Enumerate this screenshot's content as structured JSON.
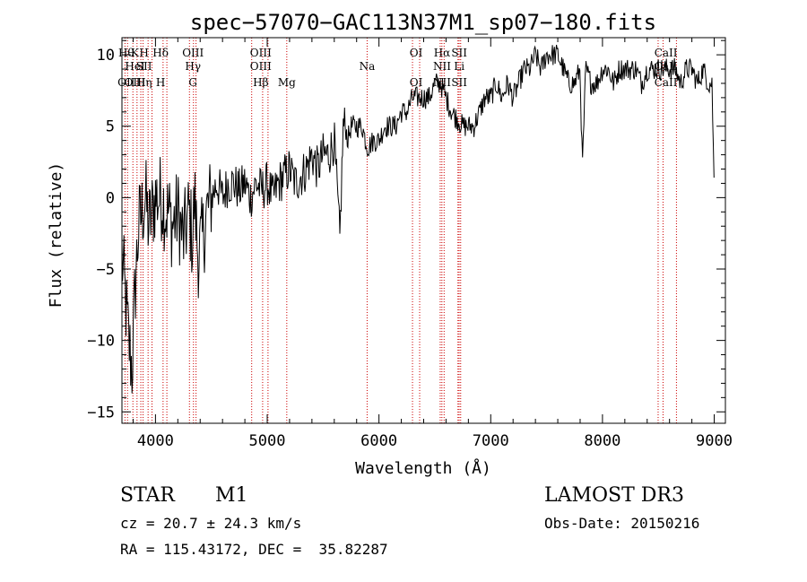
{
  "chart_data": {
    "type": "line",
    "title": "spec−57070−GAC113N37M1_sp07−180.fits",
    "xlabel": "Wavelength (Å)",
    "ylabel": "Flux (relative)",
    "xlim": [
      3700,
      9100
    ],
    "ylim": [
      -15.8,
      11.2
    ],
    "xticks": [
      {
        "value": 4000,
        "label": "4000"
      },
      {
        "value": 5000,
        "label": "5000"
      },
      {
        "value": 6000,
        "label": "6000"
      },
      {
        "value": 7000,
        "label": "7000"
      },
      {
        "value": 8000,
        "label": "8000"
      },
      {
        "value": 9000,
        "label": "9000"
      }
    ],
    "yticks": [
      {
        "value": 10,
        "label": "10"
      },
      {
        "value": 5,
        "label": "5"
      },
      {
        "value": 0,
        "label": "0"
      },
      {
        "value": -5,
        "label": "−5"
      },
      {
        "value": -10,
        "label": "−10"
      },
      {
        "value": -15,
        "label": "−15"
      }
    ],
    "grid": false,
    "series_color": "#000000",
    "line_color": "#cc0000",
    "series": [
      {
        "x": [
          3700,
          3730,
          3760,
          3790,
          3820,
          3850,
          3880,
          3910,
          3940,
          3970,
          4000,
          4030,
          4060,
          4090,
          4120,
          4150,
          4200,
          4250,
          4300,
          4330,
          4350,
          4380,
          4420,
          4460,
          4500,
          4550,
          4600,
          4650,
          4700,
          4750,
          4800,
          4850,
          4900,
          4950,
          5000,
          5050,
          5100,
          5150,
          5200,
          5250,
          5300,
          5350,
          5400,
          5450,
          5500,
          5550,
          5600,
          5650,
          5680,
          5700,
          5720,
          5750,
          5800,
          5850,
          5880,
          5900,
          5950,
          6000,
          6050,
          6100,
          6150,
          6200,
          6250,
          6300,
          6350,
          6400,
          6450,
          6500,
          6550,
          6600,
          6650,
          6700,
          6750,
          6800,
          6850,
          6900,
          6950,
          7000,
          7050,
          7100,
          7150,
          7200,
          7250,
          7300,
          7350,
          7400,
          7450,
          7500,
          7550,
          7600,
          7650,
          7700,
          7750,
          7800,
          7820,
          7850,
          7900,
          7950,
          8000,
          8050,
          8100,
          8150,
          8200,
          8250,
          8300,
          8350,
          8400,
          8450,
          8500,
          8550,
          8600,
          8650,
          8700,
          8750,
          8800,
          8850,
          8900,
          8950,
          8980,
          9000
        ],
        "y": [
          -4,
          -7,
          -10,
          -12,
          -6,
          -2,
          -1,
          0,
          -2,
          -1,
          0,
          0,
          0,
          -1,
          -1,
          -2,
          -1,
          -3,
          -1,
          -3,
          0,
          -4,
          -3,
          -1,
          0,
          1,
          0,
          1,
          1,
          0.5,
          1,
          0,
          1,
          0.5,
          1,
          0,
          1,
          1.5,
          2,
          1,
          1.5,
          2,
          3,
          2,
          3,
          3,
          4,
          -3,
          5,
          5,
          4,
          5,
          5,
          5,
          4,
          3.5,
          4,
          4,
          5,
          5,
          5,
          6,
          6,
          7,
          7,
          7,
          7,
          8,
          8,
          7,
          6,
          5.5,
          5,
          5,
          5,
          6,
          7,
          7,
          8,
          7,
          8,
          7,
          8,
          9,
          9,
          10,
          9,
          10,
          10,
          10,
          9,
          8,
          8,
          9,
          2,
          9,
          8,
          8,
          9,
          9,
          8,
          9,
          9,
          9,
          9,
          8,
          9,
          9,
          9,
          9,
          9,
          9,
          8,
          9,
          9,
          8,
          9,
          8,
          8,
          0.5
        ]
      }
    ],
    "lines": [
      {
        "top": "Hθ",
        "bottom": "OII",
        "x": [
          3727,
          3750
        ]
      },
      {
        "top": "K",
        "mid": "HeI",
        "bottom": "OIII",
        "x": [
          3798,
          3835
        ]
      },
      {
        "top": "H",
        "mid": "SII",
        "bottom": "Hη",
        "x": [
          3869,
          3889,
          3934
        ]
      },
      {
        "top": "Hδ",
        "mid": "",
        "bottom": "H",
        "x": [
          3969,
          4068,
          4102
        ]
      },
      {
        "top": "OIII",
        "mid": "Hγ",
        "bottom": "G",
        "x": [
          4304,
          4340,
          4363
        ]
      },
      {
        "top": "OIII",
        "mid": "OIII",
        "bottom": "Hβ",
        "x": [
          4861,
          4959,
          5007
        ]
      },
      {
        "top": "",
        "mid": "",
        "bottom": "Mg",
        "x": [
          5175
        ]
      },
      {
        "top": "",
        "mid": "Na",
        "bottom": "",
        "x": [
          5894
        ]
      },
      {
        "top": "OI",
        "mid": "",
        "bottom": "OI",
        "x": [
          6300,
          6364
        ]
      },
      {
        "top": "Hα",
        "mid": "NII",
        "bottom": "NII",
        "x": [
          6548,
          6563,
          6583
        ]
      },
      {
        "top": "SII",
        "mid": "Li",
        "bottom": "SII",
        "x": [
          6707,
          6717,
          6731
        ]
      },
      {
        "top": "CaII",
        "mid": "CaII",
        "bottom": "CaII",
        "x": [
          8498,
          8542,
          8662
        ]
      }
    ]
  },
  "info": {
    "class_label": "STAR",
    "subclass": "M1",
    "survey": "LAMOST DR3",
    "cz": "cz = 20.7 ± 24.3 km/s",
    "obs_date": "Obs-Date: 20150216",
    "radec": "RA = 115.43172, DEC =  35.82287"
  }
}
